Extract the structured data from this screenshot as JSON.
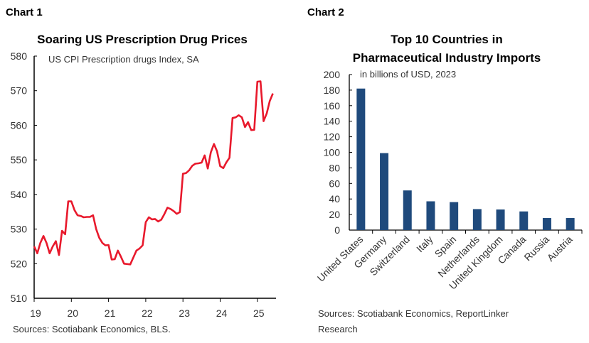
{
  "chart_data": [
    {
      "label": "Chart 1",
      "type": "line",
      "title": "Soaring US Prescription Drug Prices",
      "subtitle": "US CPI Prescription drugs Index, SA",
      "source": "Sources: Scotiabank Economics, BLS.",
      "ylim": [
        510,
        580
      ],
      "yticks": [
        510,
        520,
        530,
        540,
        550,
        560,
        570,
        580
      ],
      "xtick_labels": [
        "19",
        "20",
        "21",
        "22",
        "23",
        "24",
        "25"
      ],
      "grid": false,
      "color": "#e8192c",
      "series": [
        {
          "x": [
            "2019-01",
            "2019-02",
            "2019-03",
            "2019-04",
            "2019-05",
            "2019-06",
            "2019-07",
            "2019-08",
            "2019-09",
            "2019-10",
            "2019-11",
            "2019-12",
            "2020-01",
            "2020-02",
            "2020-03",
            "2020-04",
            "2020-05",
            "2020-06",
            "2020-07",
            "2020-08",
            "2020-09",
            "2020-10",
            "2020-11",
            "2020-12",
            "2021-01",
            "2021-02",
            "2021-03",
            "2021-04",
            "2021-05",
            "2021-06",
            "2021-07",
            "2021-08",
            "2021-09",
            "2021-10",
            "2021-11",
            "2021-12",
            "2022-01",
            "2022-02",
            "2022-03",
            "2022-04",
            "2022-05",
            "2022-06",
            "2022-07",
            "2022-08",
            "2022-09",
            "2022-10",
            "2022-11",
            "2022-12",
            "2023-01",
            "2023-02",
            "2023-03",
            "2023-04",
            "2023-05",
            "2023-06",
            "2023-07",
            "2023-08",
            "2023-09",
            "2023-10",
            "2023-11",
            "2023-12",
            "2024-01",
            "2024-02",
            "2024-03",
            "2024-04",
            "2024-05",
            "2024-06",
            "2024-07",
            "2024-08",
            "2024-09",
            "2024-10",
            "2024-11",
            "2024-12",
            "2025-01",
            "2025-02",
            "2025-03",
            "2025-04",
            "2025-05",
            "2025-06"
          ],
          "values": [
            525,
            523,
            526,
            528,
            526,
            523,
            525,
            526.5,
            522.5,
            529.5,
            528.5,
            538,
            538,
            535.5,
            534,
            533.8,
            533.4,
            533.5,
            533.5,
            534,
            530,
            527.5,
            526,
            525.3,
            525.4,
            521.2,
            521.3,
            523.8,
            522,
            520,
            519.9,
            519.8,
            521.8,
            523.8,
            524.4,
            525.3,
            532,
            533.4,
            532.8,
            532.9,
            532.2,
            532.7,
            534.3,
            536.2,
            535.8,
            535.2,
            534.4,
            534.9,
            546,
            546.2,
            547,
            548.3,
            548.9,
            549,
            549.2,
            551.3,
            547.5,
            552.2,
            554.6,
            552.5,
            548.2,
            547.6,
            549.3,
            550.6,
            562.1,
            562.3,
            562.9,
            562.3,
            559.5,
            560.9,
            558.6,
            558.7,
            572.6,
            572.7,
            561.2,
            563.4,
            567,
            569.2
          ]
        }
      ]
    },
    {
      "label": "Chart 2",
      "type": "bar",
      "title": [
        "Top 10 Countries in",
        "Pharmaceutical Industry Imports"
      ],
      "subtitle": "in billions of USD, 2023",
      "source": [
        "Sources: Scotiabank Economics, ReportLinker",
        "Research"
      ],
      "ylim": [
        0,
        200
      ],
      "yticks": [
        0,
        20,
        40,
        60,
        80,
        100,
        120,
        140,
        160,
        180,
        200
      ],
      "grid": false,
      "color": "#1f4a7c",
      "categories": [
        "United States",
        "Germany",
        "Switzerland",
        "Italy",
        "Spain",
        "Netherlands",
        "United Kingdom",
        "Canada",
        "Russia",
        "Austria"
      ],
      "values": [
        182,
        99,
        51,
        37,
        36,
        27,
        26.5,
        24,
        15.5,
        15.5
      ]
    }
  ]
}
